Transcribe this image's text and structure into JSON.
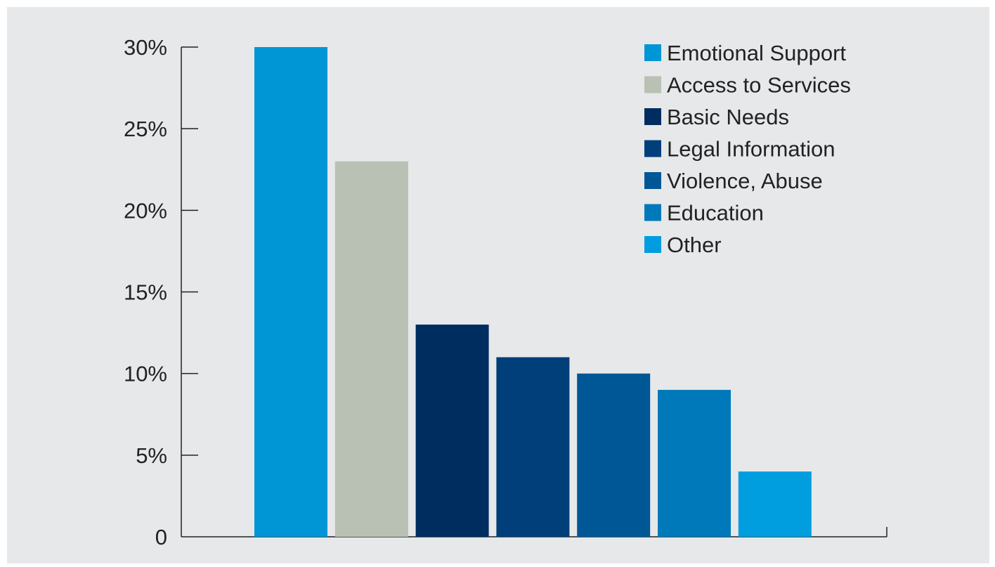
{
  "chart_data": {
    "type": "bar",
    "categories": [
      "Emotional Support",
      "Access to Services",
      "Basic Needs",
      "Legal Information",
      "Violence, Abuse",
      "Education",
      "Other"
    ],
    "values": [
      30,
      23,
      13,
      11,
      10,
      9,
      4
    ],
    "colors": [
      "#0096d6",
      "#b8c1b3",
      "#002d5f",
      "#003f7a",
      "#005795",
      "#0079bb",
      "#009ddf"
    ],
    "y_ticks": [
      "0",
      "5%",
      "10%",
      "15%",
      "20%",
      "25%",
      "30%"
    ],
    "y_tick_values": [
      0,
      5,
      10,
      15,
      20,
      25,
      30
    ],
    "ylim": [
      0,
      30
    ],
    "title": "",
    "xlabel": "",
    "ylabel": "",
    "grid": false,
    "legend_position": "top-right",
    "background_color": "#e7e8ea",
    "axis_color": "#222222",
    "text_color": "#222222"
  }
}
